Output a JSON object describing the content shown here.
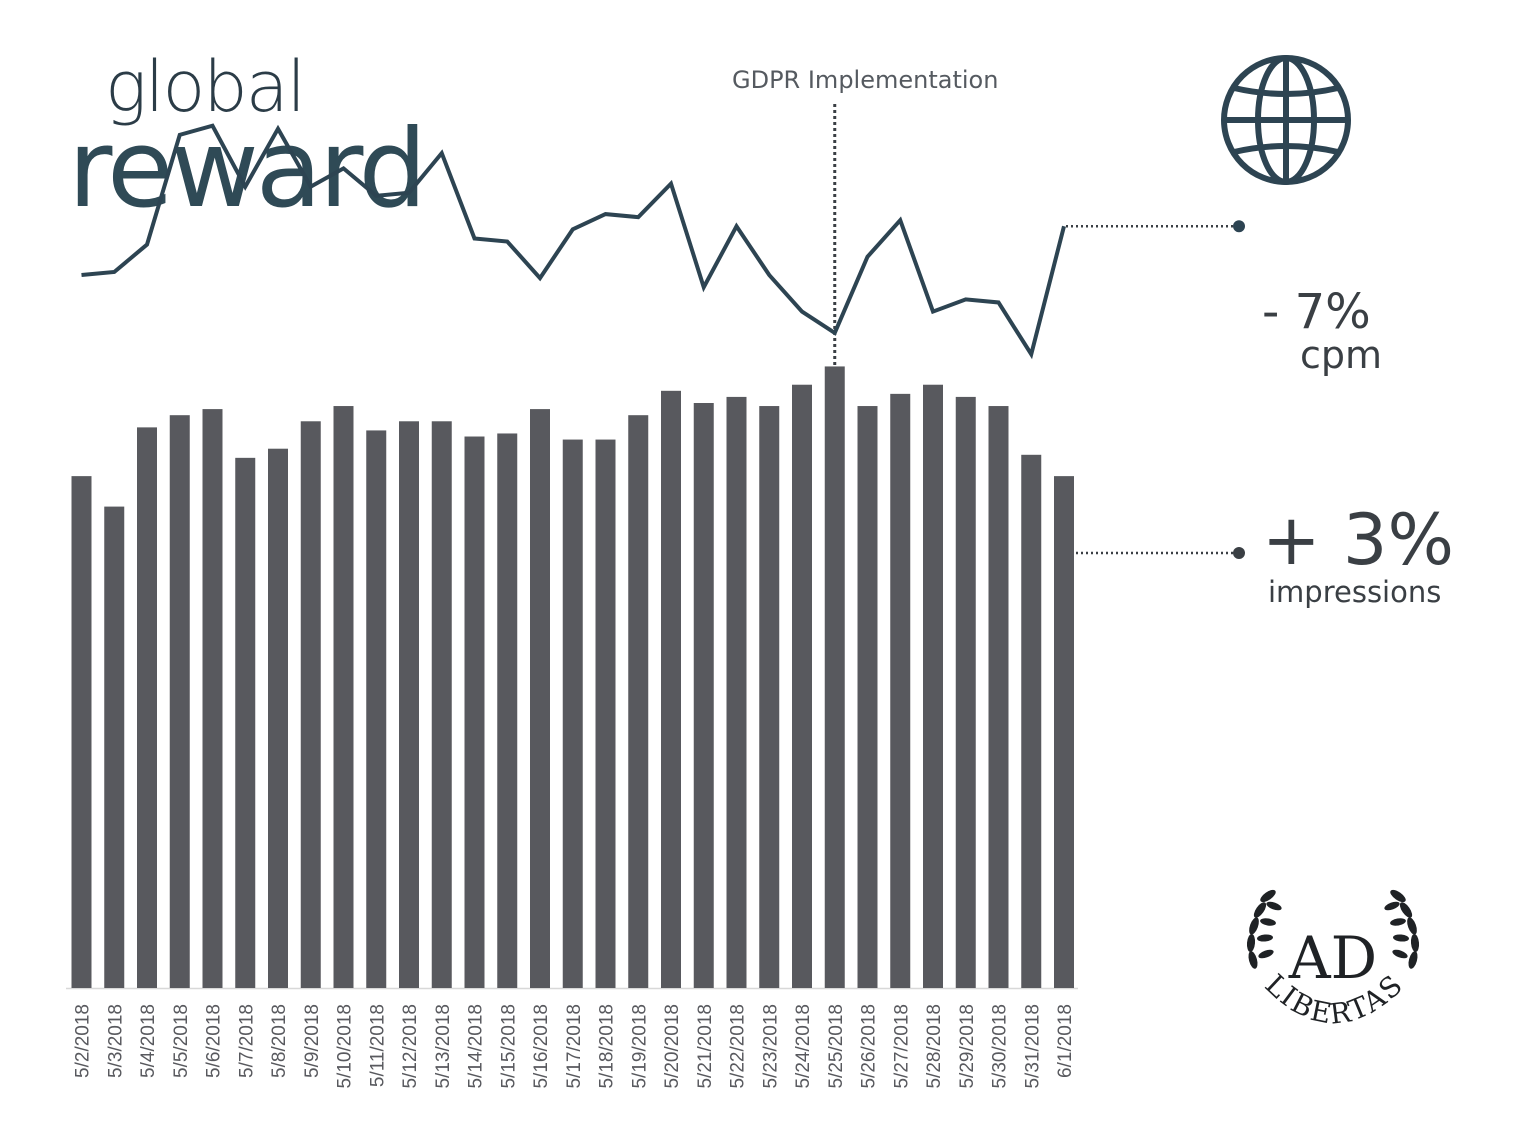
{
  "title": {
    "line1": "global",
    "line2": "reward"
  },
  "annotation": {
    "label": "GDPR Implementation",
    "category": "5/25/2018"
  },
  "stats": {
    "cpm": {
      "change": "- 7%",
      "label": "cpm"
    },
    "impressions": {
      "change": "+ 3%",
      "label": "impressions"
    }
  },
  "colors": {
    "bars": "#58595e",
    "line": "#2d4452",
    "text": "#3a3f44"
  },
  "icons": {
    "globe": "globe-icon",
    "logo": "ad-libertas-laurel-logo"
  },
  "logo": {
    "monogram": "AD",
    "name": "LIBERTAS"
  },
  "chart_data": {
    "type": "bar",
    "categories": [
      "5/2/2018",
      "5/3/2018",
      "5/4/2018",
      "5/5/2018",
      "5/6/2018",
      "5/7/2018",
      "5/8/2018",
      "5/9/2018",
      "5/10/2018",
      "5/11/2018",
      "5/12/2018",
      "5/13/2018",
      "5/14/2018",
      "5/15/2018",
      "5/16/2018",
      "5/17/2018",
      "5/18/2018",
      "5/19/2018",
      "5/20/2018",
      "5/21/2018",
      "5/22/2018",
      "5/23/2018",
      "5/24/2018",
      "5/25/2018",
      "5/26/2018",
      "5/27/2018",
      "5/28/2018",
      "5/29/2018",
      "5/30/2018",
      "5/31/2018",
      "6/1/2018"
    ],
    "series": [
      {
        "type": "bar",
        "values": [
          84,
          79,
          92,
          94,
          95,
          87,
          88.5,
          93,
          95.5,
          91.5,
          93,
          93,
          90.5,
          91,
          95,
          90,
          90,
          94,
          98,
          96,
          97,
          95.5,
          99,
          102,
          95.5,
          97.5,
          99,
          97,
          95.5,
          87.5,
          84
        ]
      },
      {
        "type": "line",
        "values": [
          117,
          117.5,
          122,
          140,
          141.5,
          131.5,
          141,
          131.5,
          134.5,
          130,
          130.5,
          137,
          123,
          122.5,
          116.5,
          124.5,
          127,
          126.5,
          132,
          115,
          125,
          117,
          111,
          107.5,
          120,
          126,
          111,
          113,
          112.5,
          104,
          125
        ]
      }
    ],
    "ylim": [
      0,
      160
    ],
    "grid": false,
    "legend": "none"
  }
}
